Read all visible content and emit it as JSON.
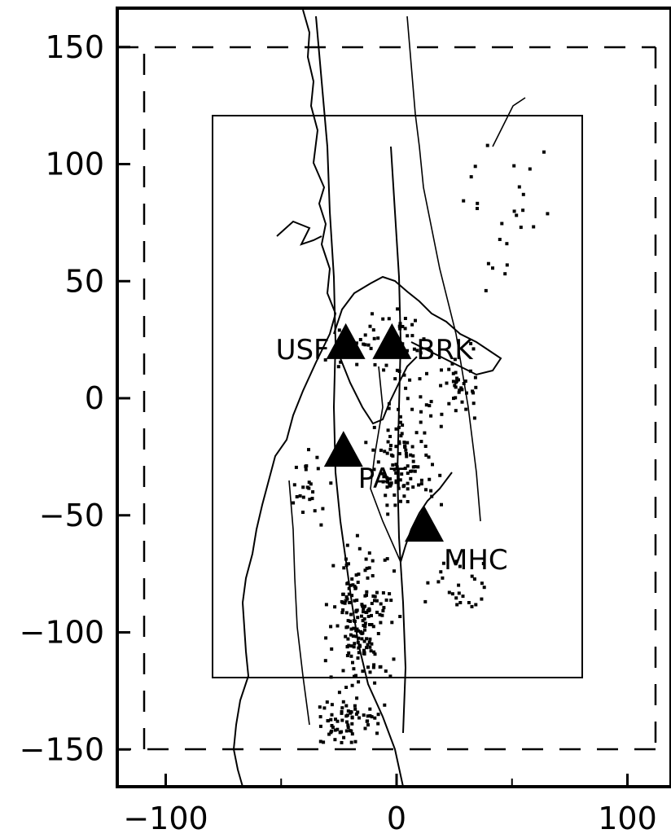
{
  "map": {
    "x_axis": {
      "ticks": [
        -100,
        0,
        100
      ],
      "tick_labels": [
        "−100",
        "0",
        "100"
      ],
      "range": [
        -120,
        120
      ]
    },
    "y_axis": {
      "ticks": [
        150,
        100,
        50,
        0,
        -50,
        -100,
        -150
      ],
      "tick_labels": [
        "150",
        "100",
        "50",
        "0",
        "−50",
        "−100",
        "−150"
      ],
      "range": [
        -165,
        165
      ]
    },
    "outer_box": {
      "x": [
        -110,
        110
      ],
      "y": [
        -150,
        150
      ],
      "style": "dashed"
    },
    "inner_box": {
      "x": [
        -80,
        80
      ],
      "y": [
        -120,
        120
      ],
      "style": "solid"
    },
    "stations": [
      {
        "label": "USF",
        "x": -22,
        "y": 23
      },
      {
        "label": "BRK",
        "x": -2,
        "y": 23
      },
      {
        "label": "PAT",
        "x": -23,
        "y": -23
      },
      {
        "label": "MHC",
        "x": 12,
        "y": -55
      }
    ],
    "colors": {
      "ink": "#000000",
      "background": "#ffffff"
    }
  }
}
